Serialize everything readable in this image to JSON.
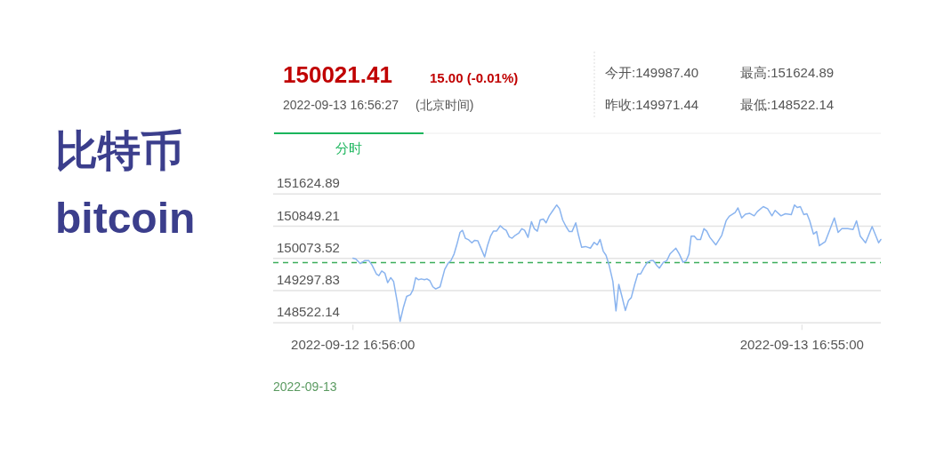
{
  "chart_data": {
    "type": "line",
    "title": "比特币",
    "subtitle": "bitcoin",
    "annotations": [
      "150021.41",
      "15.00 (-0.01%)",
      "2022-09-13 16:56:27",
      "(北京时间)",
      "今开:149987.40",
      "最高:151624.89",
      "昨收:149971.44",
      "最低:148522.14",
      "分时",
      "2022-09-13"
    ],
    "x": [
      "2022-09-12T16:56",
      "2022-09-12T17:05",
      "2022-09-12T17:19",
      "2022-09-12T17:33",
      "2022-09-12T17:47",
      "2022-09-12T17:57",
      "2022-09-12T18:11",
      "2022-09-12T18:19",
      "2022-09-12T18:28",
      "2022-09-12T18:38",
      "2022-09-12T18:47",
      "2022-09-12T18:57",
      "2022-09-12T19:06",
      "2022-09-12T19:18",
      "2022-09-12T19:27",
      "2022-09-12T19:37",
      "2022-09-12T19:48",
      "2022-09-12T20:00",
      "2022-09-12T20:08",
      "2022-09-12T20:17",
      "2022-09-12T20:26",
      "2022-09-12T20:35",
      "2022-09-12T20:45",
      "2022-09-12T20:53",
      "2022-09-12T21:02",
      "2022-09-12T21:12",
      "2022-09-12T21:21",
      "2022-09-12T21:35",
      "2022-09-12T21:50",
      "2022-09-12T22:01",
      "2022-09-12T22:10",
      "2022-09-12T22:20",
      "2022-09-12T22:29",
      "2022-09-12T22:39",
      "2022-09-12T22:47",
      "2022-09-12T22:56",
      "2022-09-12T23:07",
      "2022-09-12T23:17",
      "2022-09-12T23:26",
      "2022-09-12T23:36",
      "2022-09-12T23:45",
      "2022-09-12T23:58",
      "2022-09-13T00:07",
      "2022-09-13T00:17",
      "2022-09-13T00:26",
      "2022-09-13T00:36",
      "2022-09-13T00:48",
      "2022-09-13T00:58",
      "2022-09-13T01:07",
      "2022-09-13T01:17",
      "2022-09-13T01:26",
      "2022-09-13T01:36",
      "2022-09-13T01:47",
      "2022-09-13T01:57",
      "2022-09-13T02:06",
      "2022-09-13T02:17",
      "2022-09-13T02:28",
      "2022-09-13T02:37",
      "2022-09-13T02:47",
      "2022-09-13T02:56",
      "2022-09-13T03:06",
      "2022-09-13T03:15",
      "2022-09-13T03:25",
      "2022-09-13T03:36",
      "2022-09-13T03:49",
      "2022-09-13T03:58",
      "2022-09-13T04:08",
      "2022-09-13T04:19",
      "2022-09-13T04:29",
      "2022-09-13T04:38",
      "2022-09-13T04:50",
      "2022-09-13T04:59",
      "2022-09-13T05:09",
      "2022-09-13T05:21",
      "2022-09-13T05:37",
      "2022-09-13T05:49",
      "2022-09-13T05:59",
      "2022-09-13T06:08",
      "2022-09-13T06:18",
      "2022-09-13T06:27",
      "2022-09-13T06:37",
      "2022-09-13T06:49",
      "2022-09-13T06:59",
      "2022-09-13T07:08",
      "2022-09-13T07:18",
      "2022-09-13T07:29",
      "2022-09-13T07:39",
      "2022-09-13T07:48",
      "2022-09-13T07:59",
      "2022-09-13T08:09",
      "2022-09-13T08:18",
      "2022-09-13T08:28",
      "2022-09-13T08:40",
      "2022-09-13T08:50",
      "2022-09-13T08:59",
      "2022-09-13T09:09",
      "2022-09-13T09:18",
      "2022-09-13T09:31",
      "2022-09-13T09:42",
      "2022-09-13T09:52",
      "2022-09-13T10:11",
      "2022-09-13T10:22",
      "2022-09-13T10:34",
      "2022-09-13T10:44",
      "2022-09-13T10:53",
      "2022-09-13T11:00",
      "2022-09-13T11:10",
      "2022-09-13T11:19",
      "2022-09-13T11:30",
      "2022-09-13T11:41",
      "2022-09-13T11:50",
      "2022-09-13T12:00",
      "2022-09-13T12:19",
      "2022-09-13T12:38",
      "2022-09-13T12:52",
      "2022-09-13T13:02",
      "2022-09-13T13:21",
      "2022-09-13T13:30",
      "2022-09-13T13:42",
      "2022-09-13T13:54",
      "2022-09-13T14:08",
      "2022-09-13T14:22",
      "2022-09-13T14:32",
      "2022-09-13T14:51",
      "2022-09-13T15:05",
      "2022-09-13T15:19",
      "2022-09-13T15:29",
      "2022-09-13T15:48",
      "2022-09-13T16:02",
      "2022-09-13T16:21",
      "2022-09-13T16:31",
      "2022-09-13T16:40",
      "2022-09-13T16:50",
      "2022-09-13T17:01",
      "2022-09-13T17:11",
      "2022-09-13T17:20",
      "2022-09-13T17:32",
      "2022-09-13T17:42",
      "2022-09-13T17:51",
      "2022-09-13T18:10",
      "2022-09-13T18:39",
      "2022-09-13T18:51",
      "2022-09-13T19:03",
      "2022-09-13T19:22",
      "2022-09-13T19:39",
      "2022-09-13T19:50",
      "2022-09-13T20:02",
      "2022-09-13T20:19",
      "2022-09-13T20:40",
      "2022-09-13T21:01",
      "2022-09-13T21:08"
    ],
    "series": [
      {
        "color": "#8ab4ef",
        "values": [
          150080,
          150060,
          149950,
          150020,
          150020,
          149910,
          149700,
          149660,
          149770,
          149720,
          149490,
          149610,
          149520,
          149020,
          148560,
          148880,
          149160,
          149200,
          149310,
          149610,
          149560,
          149580,
          149560,
          149580,
          149540,
          149390,
          149340,
          149390,
          149810,
          149960,
          150020,
          150180,
          150410,
          150700,
          150750,
          150560,
          150520,
          150450,
          150510,
          150500,
          150340,
          150110,
          150380,
          150610,
          150730,
          150730,
          150860,
          150790,
          150750,
          150590,
          150560,
          150630,
          150680,
          150790,
          150750,
          150580,
          150960,
          150790,
          150730,
          151000,
          151020,
          150930,
          151100,
          151220,
          151360,
          151270,
          151000,
          150840,
          150720,
          150720,
          150930,
          150630,
          150340,
          150360,
          150320,
          150460,
          150400,
          150530,
          150250,
          150150,
          149910,
          149520,
          148810,
          149450,
          149160,
          148820,
          149060,
          149130,
          149450,
          149700,
          149700,
          149840,
          149980,
          150020,
          150020,
          149910,
          149840,
          149980,
          150020,
          150180,
          150320,
          150180,
          149980,
          150020,
          150180,
          150610,
          150610,
          150530,
          150530,
          150790,
          150730,
          150580,
          150400,
          150630,
          150980,
          151090,
          151180,
          151290,
          151050,
          151140,
          151160,
          151100,
          151200,
          151320,
          151270,
          151100,
          151230,
          151100,
          151150,
          151130,
          151360,
          151300,
          151320,
          151130,
          151150,
          150980,
          150660,
          150720,
          150380,
          150480,
          151050,
          150700,
          150790,
          150790,
          150770,
          150980,
          150610,
          150450,
          150840,
          150450,
          150530
        ]
      }
    ],
    "xlim": [
      "2022-09-12T12:40",
      "2022-09-13T21:08"
    ],
    "xticks": [
      {
        "value": "2022-09-12T16:56",
        "label": "2022-09-12 16:56:00"
      },
      {
        "value": "2022-09-13T16:55",
        "label": "2022-09-13 16:55:00"
      }
    ],
    "ylim": [
      148522.14,
      151624.89
    ],
    "yticks": [
      148522.14,
      149297.83,
      150073.52,
      150849.21,
      151624.89
    ],
    "grid": "y",
    "marker": "none",
    "line_style": "solid",
    "ref_lines": [
      {
        "axis": "y",
        "value": 149971.44,
        "color": "#3cae5c",
        "line_style": "dashed"
      }
    ]
  }
}
